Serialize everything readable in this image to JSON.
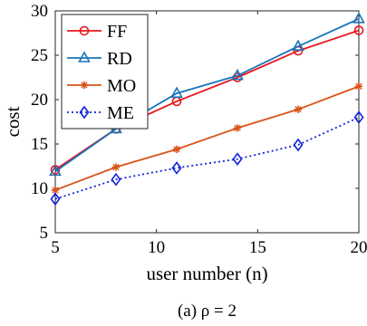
{
  "chart_data": {
    "type": "line",
    "xlabel": "user number (n)",
    "ylabel": "cost",
    "caption": "(a) ρ = 2",
    "xlim": [
      5,
      20
    ],
    "ylim": [
      5,
      30
    ],
    "x_ticks": [
      5,
      10,
      15,
      20
    ],
    "y_ticks": [
      5,
      10,
      15,
      20,
      25,
      30
    ],
    "x": [
      5,
      8,
      11,
      14,
      17,
      20
    ],
    "legend_position": "top-left",
    "grid": false,
    "series": [
      {
        "name": "FF",
        "color": "#e8171e",
        "marker": "circle",
        "dash": "solid",
        "values": [
          12.1,
          16.7,
          19.8,
          22.5,
          25.5,
          27.8
        ]
      },
      {
        "name": "RD",
        "color": "#1a74b8",
        "marker": "triangle",
        "dash": "solid",
        "values": [
          11.9,
          16.7,
          20.7,
          22.7,
          26.0,
          29.1
        ]
      },
      {
        "name": "MO",
        "color": "#d95319",
        "marker": "asterisk",
        "dash": "solid",
        "values": [
          9.8,
          12.4,
          14.4,
          16.8,
          18.9,
          21.5
        ]
      },
      {
        "name": "ME",
        "color": "#1024d8",
        "marker": "diamond",
        "dash": "dotted",
        "values": [
          8.8,
          11.0,
          12.3,
          13.3,
          14.9,
          18.0
        ]
      }
    ]
  }
}
